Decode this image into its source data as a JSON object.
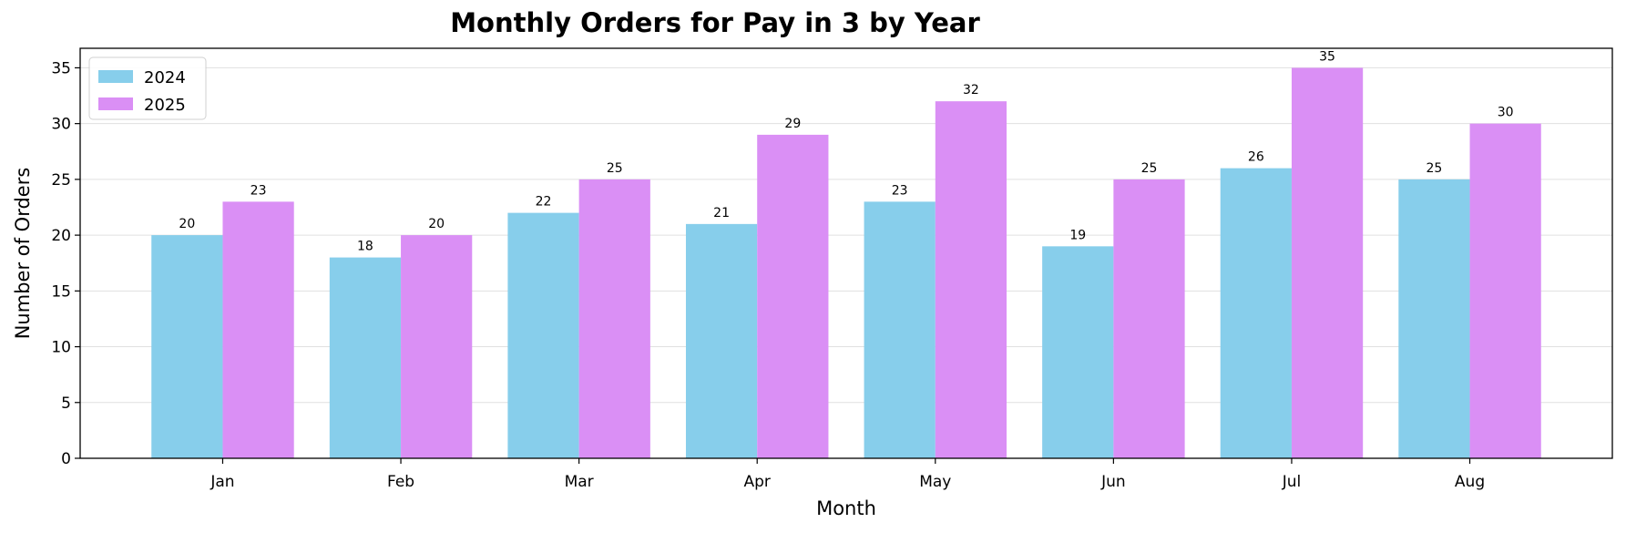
{
  "chart_data": {
    "type": "bar",
    "title": "Monthly Orders for Pay in 3 by Year",
    "xlabel": "Month",
    "ylabel": "Number of Orders",
    "categories": [
      "Jan",
      "Feb",
      "Mar",
      "Apr",
      "May",
      "Jun",
      "Jul",
      "Aug"
    ],
    "series": [
      {
        "name": "2024",
        "values": [
          20,
          18,
          22,
          21,
          23,
          19,
          26,
          25
        ],
        "color": "#87CEEB"
      },
      {
        "name": "2025",
        "values": [
          23,
          20,
          25,
          29,
          32,
          25,
          35,
          30
        ],
        "color": "#DA8FF5"
      }
    ],
    "ylim": [
      0,
      36.75
    ],
    "yticks": [
      0,
      5,
      10,
      15,
      20,
      25,
      30,
      35
    ],
    "grid": "horizontal",
    "legend_position": "top-left"
  }
}
